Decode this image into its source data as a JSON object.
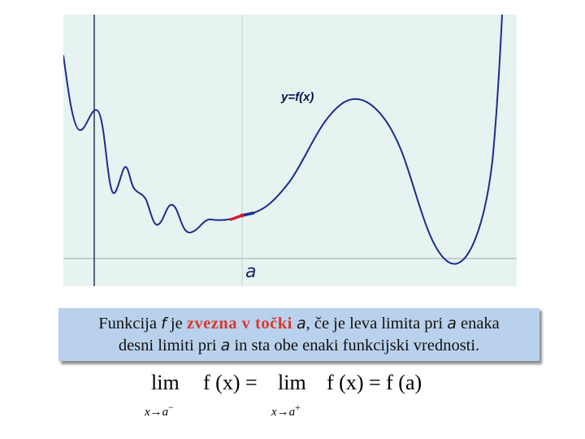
{
  "graph": {
    "curve_label": "y=f(x)",
    "point_label": "a",
    "colors": {
      "background": "#e6f3f1",
      "curve": "#1f2c8f",
      "axes": "#2c3550",
      "marker_left": "#d21e2b",
      "marker_right": "#1f2c8f"
    }
  },
  "definition": {
    "part1": "Funkcija ",
    "f": "f",
    "part2": " je ",
    "highlight": "zvezna v točki",
    "part3": " ",
    "a1": "a",
    "part4": ", če je leva limita pri ",
    "a2": "a",
    "part5": " enaka",
    "line2_part1": "desni limiti pri ",
    "a3": "a",
    "line2_part2": " in sta obe enaki funkcijski vrednosti.",
    "highlight_color": "#d8382f",
    "box_color": "#b9d1ec"
  },
  "formula": {
    "lim_left": "lim",
    "sub_left": "x→a",
    "sup_left": "−",
    "expr_left": "f (x) =",
    "lim_right": "lim",
    "sub_right": "x→a",
    "sup_right": "+",
    "expr_right": "f (x) = f (a)"
  }
}
